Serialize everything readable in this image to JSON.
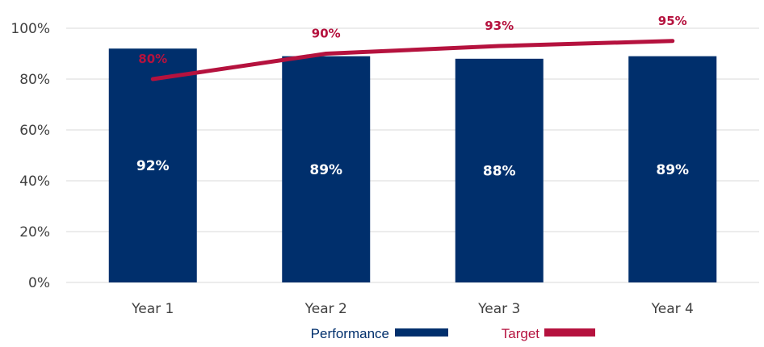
{
  "chart_data": {
    "type": "bar",
    "categories": [
      "Year 1",
      "Year 2",
      "Year 3",
      "Year 4"
    ],
    "series": [
      {
        "name": "Performance",
        "kind": "bar",
        "values": [
          92,
          89,
          88,
          89
        ],
        "labels": [
          "92%",
          "89%",
          "88%",
          "89%"
        ],
        "color": "#002f6c"
      },
      {
        "name": "Target",
        "kind": "line",
        "values": [
          80,
          90,
          93,
          95
        ],
        "labels": [
          "80%",
          "90%",
          "93%",
          "95%"
        ],
        "color": "#b5123e"
      }
    ],
    "y_ticks": [
      "0%",
      "20%",
      "40%",
      "60%",
      "80%",
      "100%"
    ],
    "ylim": [
      0,
      100
    ],
    "grid": true,
    "legend": "bottom",
    "title": "",
    "xlabel": "",
    "ylabel": ""
  }
}
